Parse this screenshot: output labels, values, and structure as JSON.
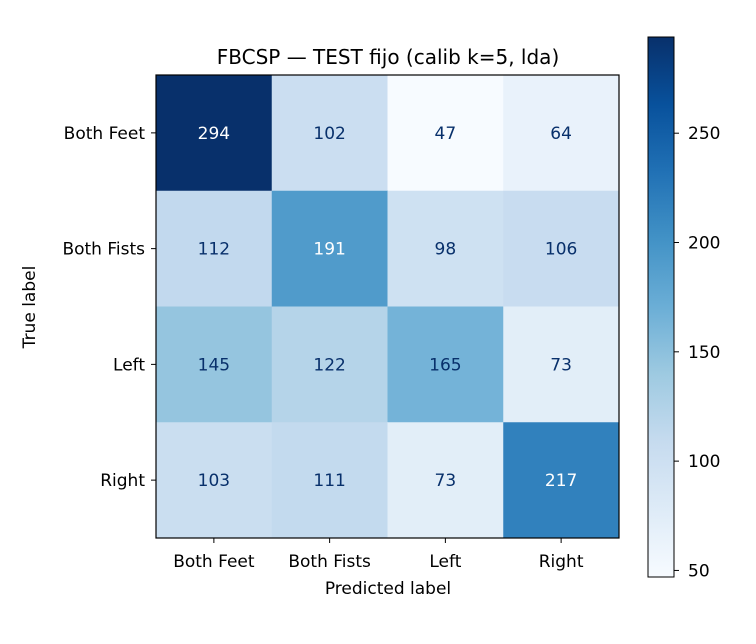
{
  "chart_data": {
    "type": "heatmap",
    "title": "FBCSP — TEST fijo (calib k=5, lda)",
    "xlabel": "Predicted label",
    "ylabel": "True label",
    "x_categories": [
      "Both Feet",
      "Both Fists",
      "Left",
      "Right"
    ],
    "y_categories": [
      "Both Feet",
      "Both Fists",
      "Left",
      "Right"
    ],
    "values": [
      [
        294,
        102,
        47,
        64
      ],
      [
        112,
        191,
        98,
        106
      ],
      [
        145,
        122,
        165,
        73
      ],
      [
        103,
        111,
        73,
        217
      ]
    ],
    "colormap": "Blues",
    "colorbar": {
      "min": 47,
      "max": 294,
      "ticks": [
        50,
        100,
        150,
        200,
        250
      ]
    },
    "colors": {
      "light_text": "#ffffff",
      "dark_text": "#08306b"
    }
  }
}
